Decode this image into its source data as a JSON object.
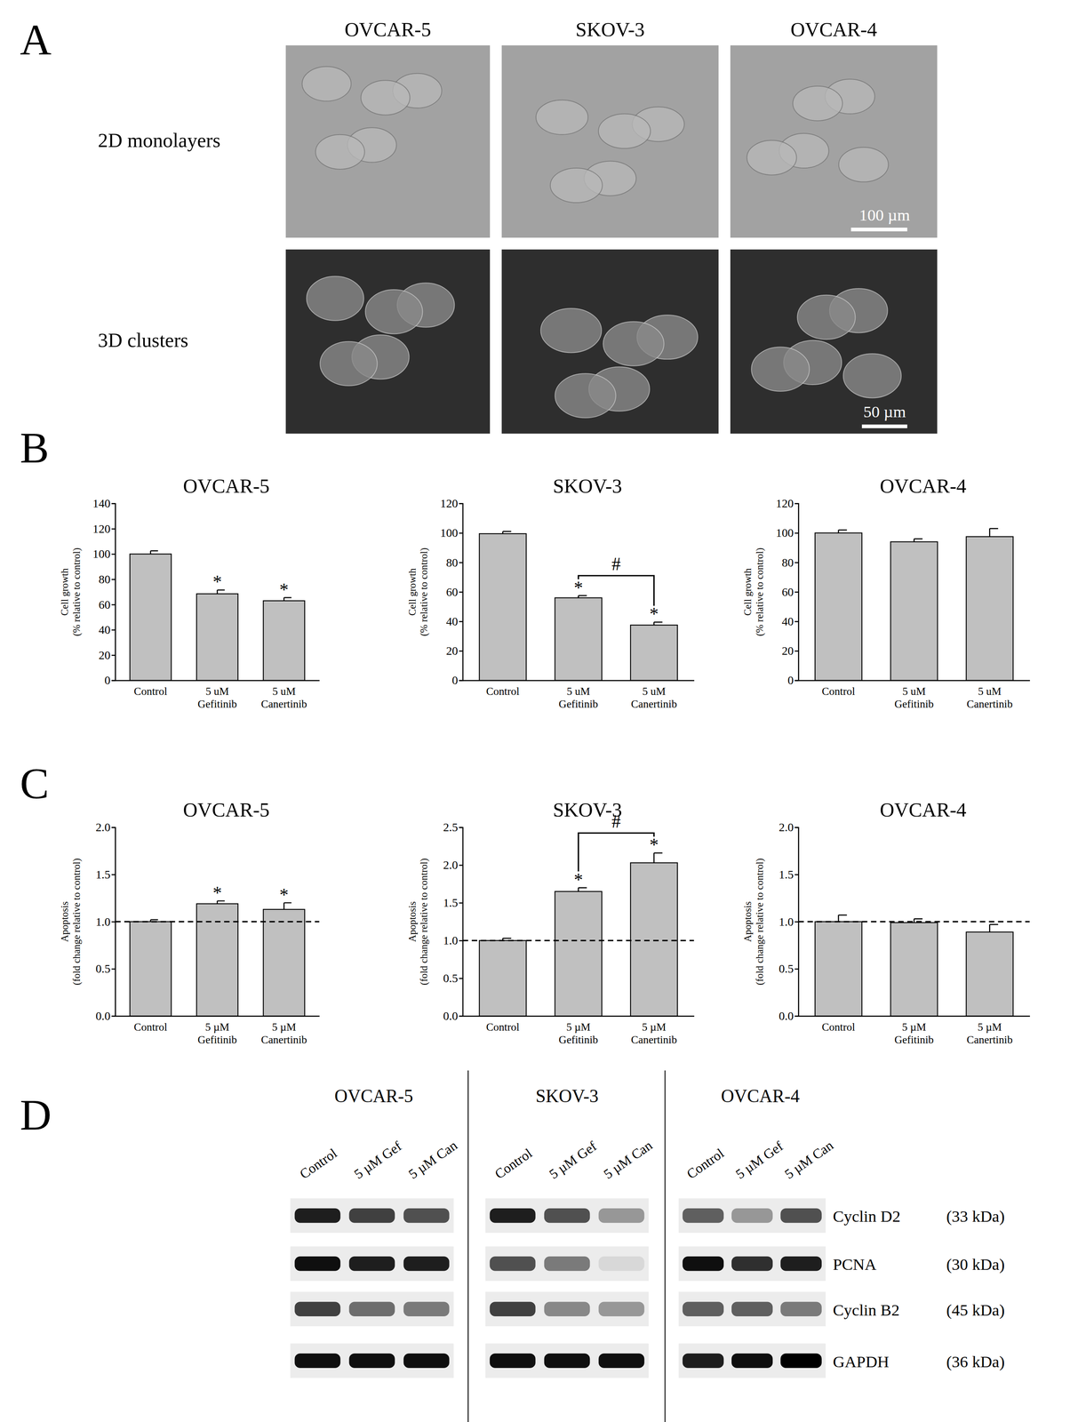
{
  "panel_labels": [
    "A",
    "B",
    "C",
    "D"
  ],
  "panel_a": {
    "row_labels": [
      "2D monolayers",
      "3D clusters"
    ],
    "columns": [
      "OVCAR-5",
      "SKOV-3",
      "OVCAR-4"
    ],
    "scale_bars": [
      "100 µm",
      "50 µm"
    ]
  },
  "chart_data": [
    {
      "type": "bar",
      "title": "OVCAR-5",
      "y_label": [
        "Cell growth",
        "(% relative to control)"
      ],
      "categories": [
        "Control",
        "5 uM\nGefitinib",
        "5 uM\nCanertinib"
      ],
      "values": [
        100,
        68.5,
        63
      ],
      "errors": [
        2.5,
        3,
        2.5
      ],
      "color": "#c0c0c0",
      "ylim": [
        0,
        140
      ],
      "yticks": [
        0,
        20,
        40,
        60,
        80,
        100,
        120,
        140
      ],
      "annotations": [
        {
          "text": "*",
          "category": 1
        },
        {
          "text": "*",
          "category": 2
        }
      ]
    },
    {
      "type": "bar",
      "title": "SKOV-3",
      "y_label": [
        "Cell growth",
        "(% relative to control)"
      ],
      "categories": [
        "Control",
        "5 uM\nGefitinib",
        "5 uM\nCanertinib"
      ],
      "values": [
        99.5,
        56,
        37.5
      ],
      "errors": [
        1.5,
        1.5,
        2
      ],
      "color": "#c0c0c0",
      "ylim": [
        0,
        120
      ],
      "yticks": [
        0,
        20,
        40,
        60,
        80,
        100,
        120
      ],
      "annotations": [
        {
          "text": "*",
          "category": 1
        },
        {
          "text": "*",
          "category": 2
        }
      ],
      "brackets": [
        {
          "text": "#",
          "from": 1,
          "to": 2
        }
      ]
    },
    {
      "type": "bar",
      "title": "OVCAR-4",
      "y_label": [
        "Cell growth",
        "(% relative to control)"
      ],
      "categories": [
        "Control",
        "5 uM\nGefitinib",
        "5 uM\nCanertinib"
      ],
      "values": [
        100,
        94,
        97.5
      ],
      "errors": [
        2,
        2,
        5.5
      ],
      "color": "#c0c0c0",
      "ylim": [
        0,
        120
      ],
      "yticks": [
        0,
        20,
        40,
        60,
        80,
        100,
        120
      ]
    },
    {
      "type": "bar",
      "title": "OVCAR-5",
      "y_label": [
        "Apoptosis",
        "(fold change relative to control)"
      ],
      "categories": [
        "Control",
        "5 µM\nGefitinib",
        "5 µM\nCanertinib"
      ],
      "values": [
        1.0,
        1.19,
        1.13
      ],
      "errors": [
        0.02,
        0.03,
        0.07
      ],
      "color": "#c0c0c0",
      "ylim": [
        0,
        2
      ],
      "yticks": [
        {
          "value": 0,
          "label": "0.0"
        },
        {
          "value": 0.5,
          "label": "0.5"
        },
        {
          "value": 1,
          "label": "1.0"
        },
        {
          "value": 1.5,
          "label": "1.5"
        },
        {
          "value": 2,
          "label": "2.0"
        }
      ],
      "reference_line": 1,
      "annotations": [
        {
          "text": "*",
          "category": 1
        },
        {
          "text": "*",
          "category": 2
        }
      ]
    },
    {
      "type": "bar",
      "title": "SKOV-3",
      "y_label": [
        "Apoptosis",
        "(fold change relative to control)"
      ],
      "categories": [
        "Control",
        "5 µM\nGefitinib",
        "5 µM\nCanertinib"
      ],
      "values": [
        1.0,
        1.65,
        2.03
      ],
      "errors": [
        0.03,
        0.05,
        0.13
      ],
      "color": "#c0c0c0",
      "ylim": [
        0,
        2.5
      ],
      "yticks": [
        {
          "value": 0,
          "label": "0.0"
        },
        {
          "value": 0.5,
          "label": "0.5"
        },
        {
          "value": 1,
          "label": "1.0"
        },
        {
          "value": 1.5,
          "label": "1.5"
        },
        {
          "value": 2,
          "label": "2.0"
        },
        {
          "value": 2.5,
          "label": "2.5"
        }
      ],
      "reference_line": 1,
      "annotations": [
        {
          "text": "*",
          "category": 1
        },
        {
          "text": "*",
          "category": 2
        }
      ],
      "brackets": [
        {
          "text": "#",
          "from": 1,
          "to": 2
        }
      ]
    },
    {
      "type": "bar",
      "title": "OVCAR-4",
      "y_label": [
        "Apoptosis",
        "(fold change relative to control)"
      ],
      "categories": [
        "Control",
        "5 µM\nGefitinib",
        "5 µM\nCanertinib"
      ],
      "values": [
        1.0,
        0.99,
        0.89
      ],
      "errors": [
        0.07,
        0.04,
        0.08
      ],
      "color": "#c0c0c0",
      "ylim": [
        0,
        2
      ],
      "yticks": [
        {
          "value": 0,
          "label": "0.0"
        },
        {
          "value": 0.5,
          "label": "0.5"
        },
        {
          "value": 1,
          "label": "1.0"
        },
        {
          "value": 1.5,
          "label": "1.5"
        },
        {
          "value": 2,
          "label": "2.0"
        }
      ],
      "reference_line": 1
    }
  ],
  "panel_d": {
    "cell_lines": [
      "OVCAR-5",
      "SKOV-3",
      "OVCAR-4"
    ],
    "lanes": [
      "Control",
      "5 µM Gef",
      "5 µM Can"
    ],
    "proteins": [
      "Cyclin D2",
      "PCNA",
      "Cyclin B2",
      "GAPDH"
    ],
    "sizes": [
      "(33 kDa)",
      "(30 kDa)",
      "(45 kDa)",
      "(36 kDa)"
    ],
    "band_intensity": [
      [
        [
          0.9,
          0.8,
          0.75
        ],
        [
          0.95,
          0.9,
          0.9
        ],
        [
          0.8,
          0.65,
          0.6
        ],
        [
          0.95,
          0.95,
          0.95
        ]
      ],
      [
        [
          0.9,
          0.75,
          0.5
        ],
        [
          0.75,
          0.6,
          0.25
        ],
        [
          0.8,
          0.55,
          0.5
        ],
        [
          0.95,
          0.95,
          0.95
        ]
      ],
      [
        [
          0.7,
          0.5,
          0.75
        ],
        [
          0.95,
          0.85,
          0.9
        ],
        [
          0.7,
          0.7,
          0.6
        ],
        [
          0.9,
          0.95,
          1.0
        ]
      ]
    ]
  }
}
